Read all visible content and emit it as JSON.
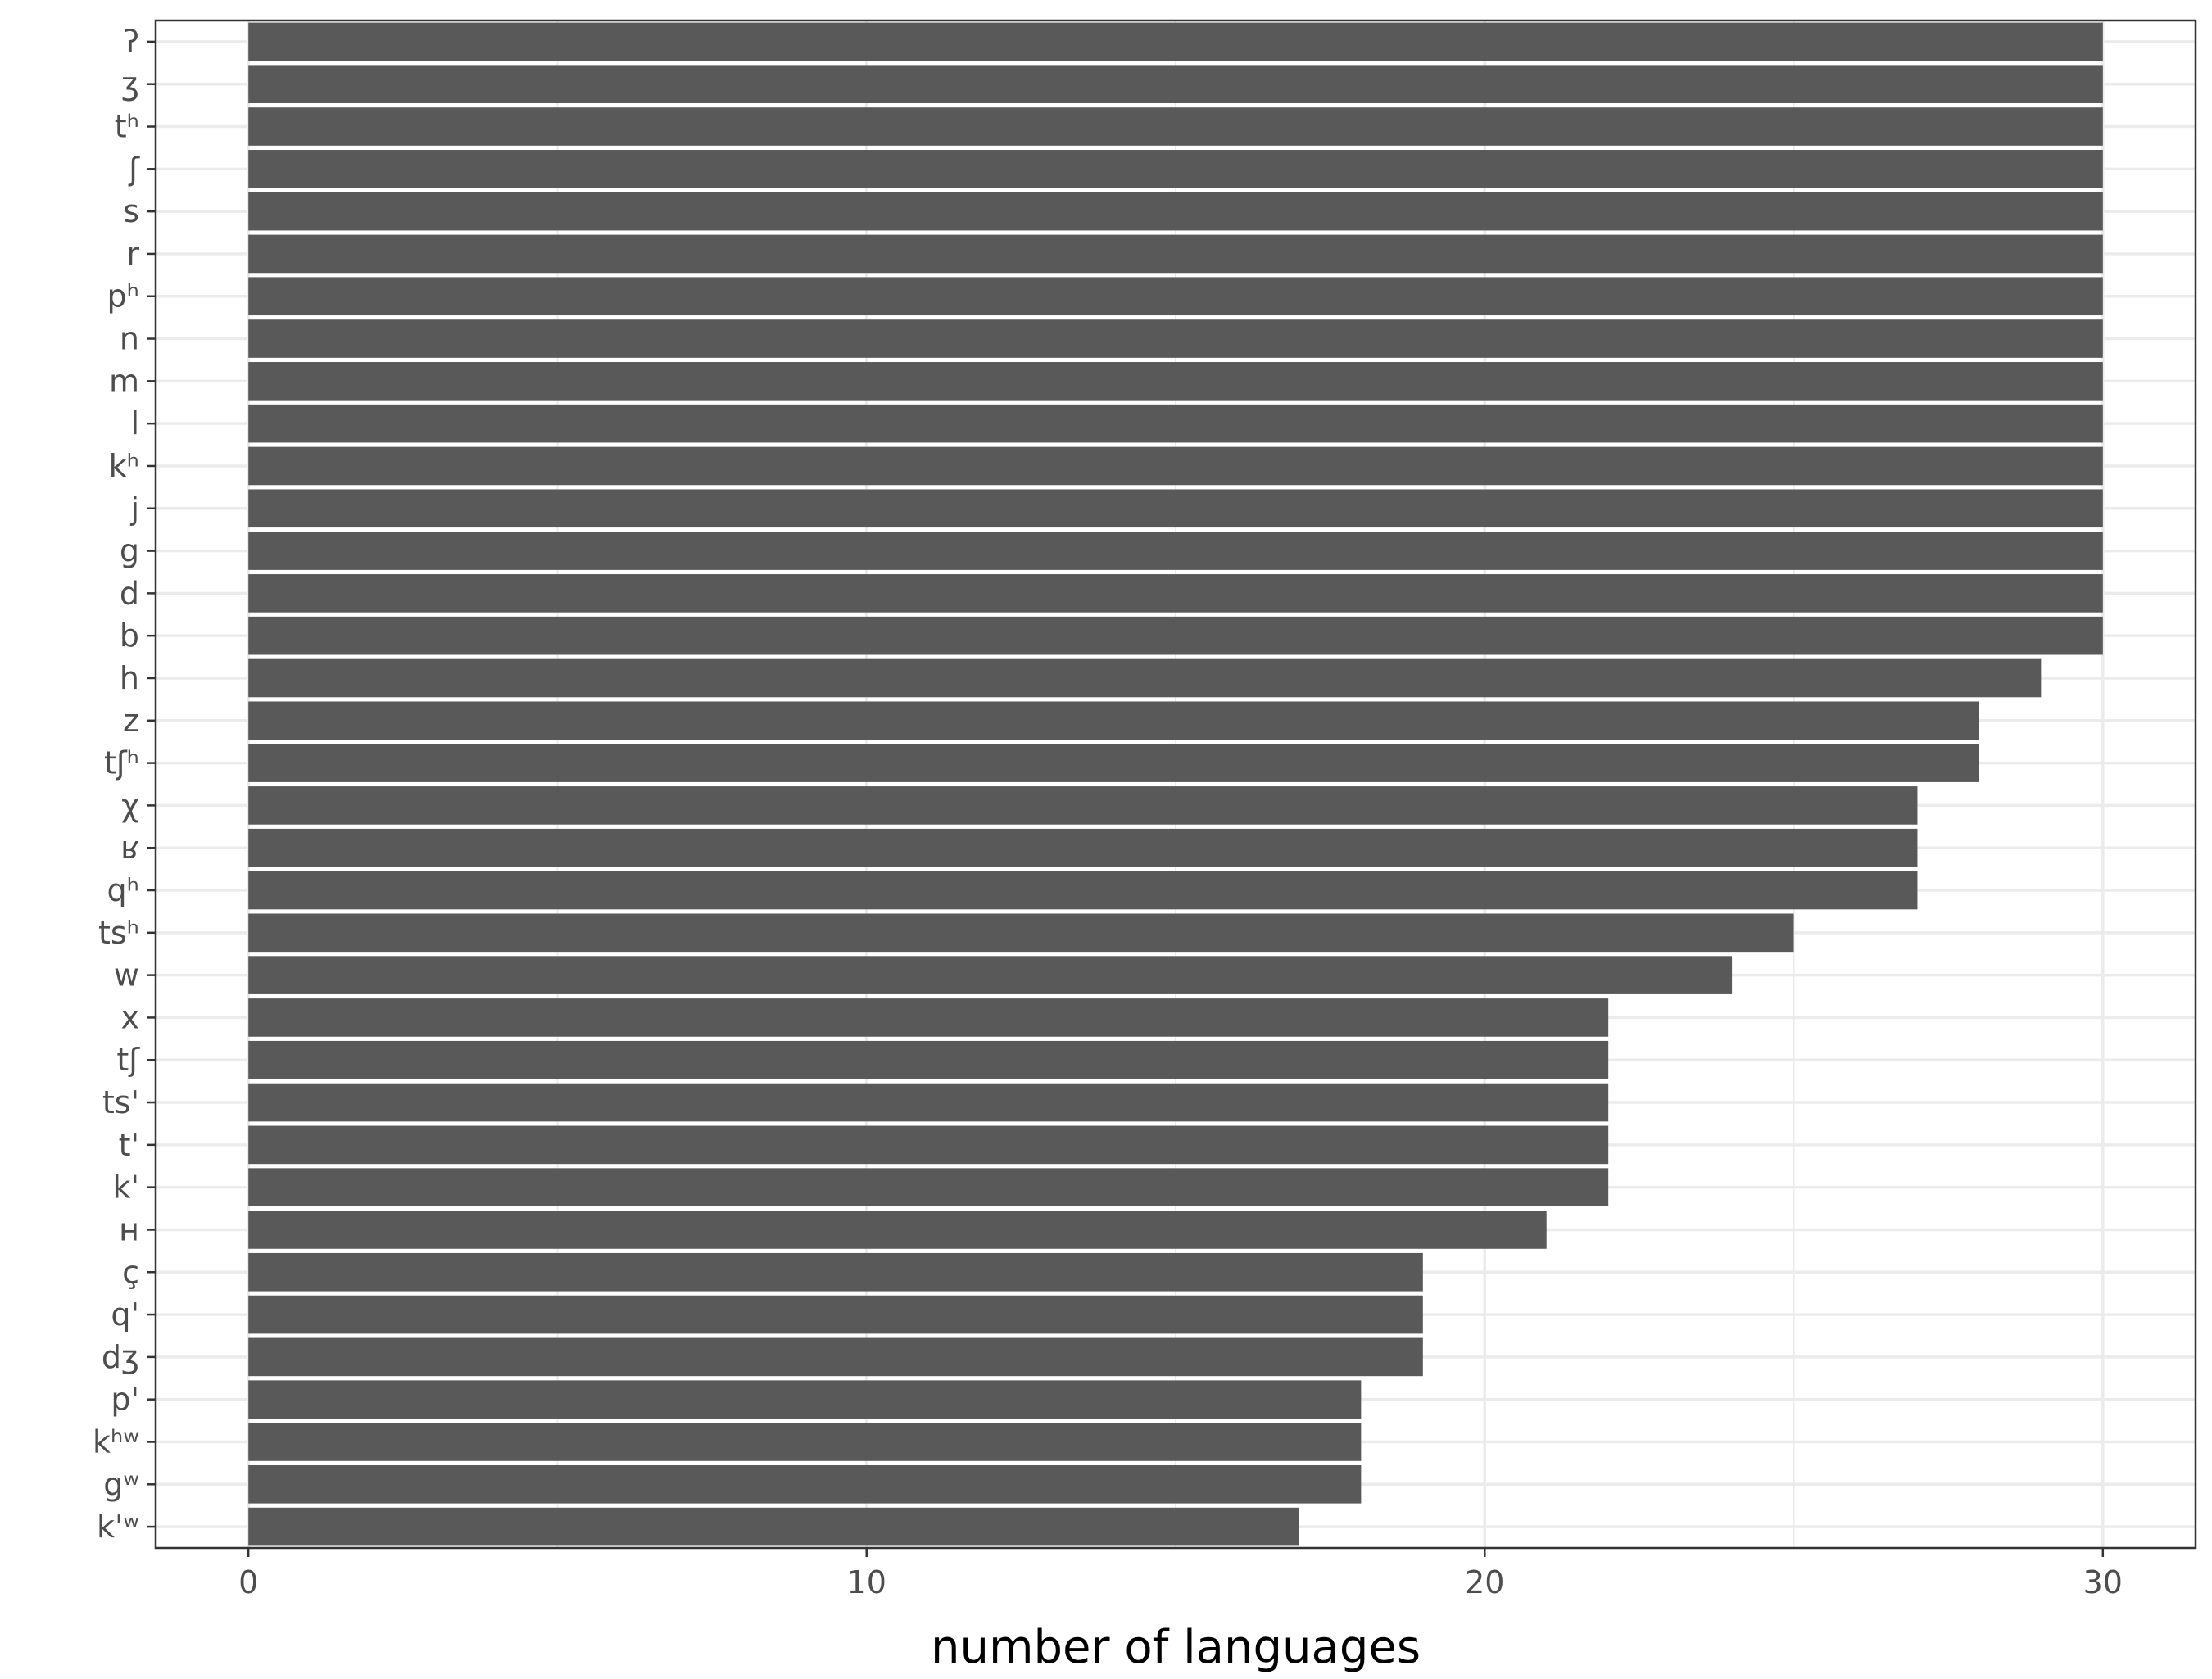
{
  "chart_data": {
    "type": "bar",
    "orientation": "horizontal",
    "categories": [
      "ʔ",
      "ʒ",
      "tʰ",
      "ʃ",
      "s",
      "r",
      "pʰ",
      "n",
      "m",
      "l",
      "kʰ",
      "j",
      "g",
      "d",
      "b",
      "h",
      "z",
      "tʃʰ",
      "χ",
      "ʁ",
      "qʰ",
      "tsʰ",
      "w",
      "x",
      "tʃ",
      "ts'",
      "t'",
      "k'",
      "ʜ",
      "ç",
      "q'",
      "dʒ",
      "p'",
      "kʰʷ",
      "gʷ",
      "k'ʷ"
    ],
    "values": [
      30,
      30,
      30,
      30,
      30,
      30,
      30,
      30,
      30,
      30,
      30,
      30,
      30,
      30,
      30,
      29,
      28,
      28,
      27,
      27,
      27,
      25,
      24,
      22,
      22,
      22,
      22,
      22,
      21,
      19,
      19,
      19,
      18,
      18,
      18,
      17
    ],
    "xlabel": "number of languages",
    "ylabel": "",
    "xlim": [
      -1.5,
      31.5
    ],
    "xticks": [
      0,
      10,
      20,
      30
    ],
    "grid": true,
    "legend": "none",
    "colors": {
      "bar": "#595959",
      "grid": "#ebebeb",
      "panel_border": "#333333",
      "tick_label": "#4d4d4d",
      "axis_title": "#000000"
    }
  }
}
